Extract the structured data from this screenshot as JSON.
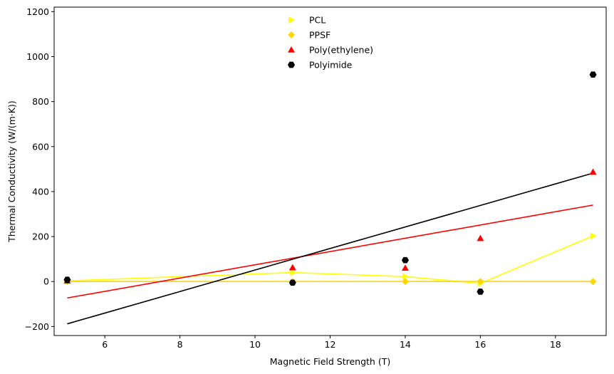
{
  "chart_data": {
    "type": "scatter",
    "title": "",
    "xlabel": "Magnetic Field Strength (T)",
    "ylabel": "Thermal Conductivity (W/(m·K))",
    "xlim": [
      4.65,
      19.35
    ],
    "ylim": [
      -240,
      1220
    ],
    "x_ticks": [
      6,
      8,
      10,
      12,
      14,
      16,
      18
    ],
    "y_ticks": [
      -200,
      0,
      200,
      400,
      600,
      800,
      1000,
      1200
    ],
    "grid": false,
    "legend_position": "top-center",
    "series": [
      {
        "name": "PCL",
        "marker": "triangle-right",
        "color": "#ffff00",
        "points": [
          [
            5,
            3
          ],
          [
            11,
            40
          ],
          [
            14,
            22
          ],
          [
            16,
            -8
          ],
          [
            19,
            203
          ]
        ],
        "line": [
          [
            5,
            3
          ],
          [
            11,
            40
          ],
          [
            14,
            22
          ],
          [
            16,
            -8
          ],
          [
            19,
            203
          ]
        ]
      },
      {
        "name": "PPSF",
        "marker": "diamond",
        "color": "#ffd700",
        "points": [
          [
            5,
            0
          ],
          [
            11,
            0
          ],
          [
            14,
            0
          ],
          [
            16,
            0
          ],
          [
            19,
            0
          ]
        ],
        "line": [
          [
            5,
            0
          ],
          [
            11,
            0
          ],
          [
            14,
            0
          ],
          [
            16,
            0
          ],
          [
            19,
            0
          ]
        ]
      },
      {
        "name": "Poly(ethylene)",
        "marker": "triangle-up",
        "color": "#ff0000",
        "points": [
          [
            5,
            3
          ],
          [
            11,
            62
          ],
          [
            14,
            60
          ],
          [
            16,
            192
          ],
          [
            19,
            487
          ]
        ],
        "line": [
          [
            5,
            -73
          ],
          [
            19,
            340
          ]
        ]
      },
      {
        "name": "Polyimide",
        "marker": "hexagon",
        "color": "#000000",
        "points": [
          [
            5,
            8
          ],
          [
            11,
            -5
          ],
          [
            14,
            95
          ],
          [
            16,
            -45
          ],
          [
            19,
            920
          ]
        ],
        "line": [
          [
            5,
            -188
          ],
          [
            19,
            482
          ]
        ]
      }
    ]
  }
}
